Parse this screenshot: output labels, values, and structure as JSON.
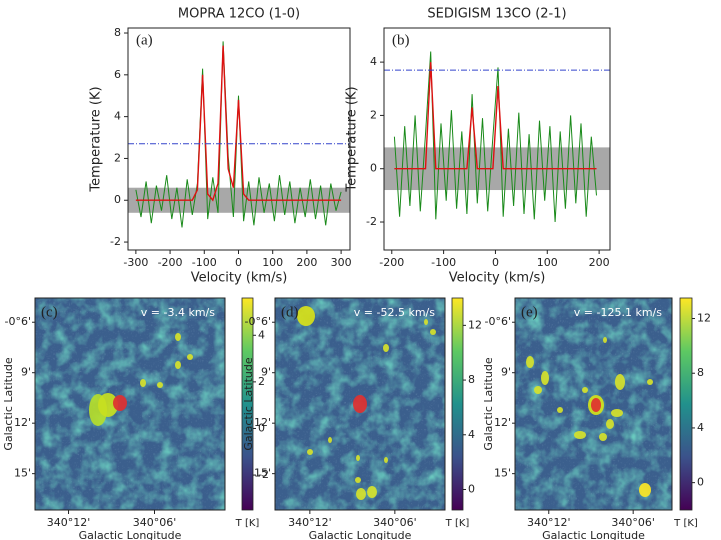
{
  "chart_data": [
    {
      "type": "line",
      "title": "MOPRA 12CO (1-0)",
      "label": "(a)",
      "xlabel": "Velocity (km/s)",
      "ylabel": "Temperature (K)",
      "xlim": [
        -323,
        326
      ],
      "xticks": [
        -300,
        -200,
        -100,
        0,
        100,
        200,
        300
      ],
      "ylim": [
        -2.38,
        8.24
      ],
      "yticks": [
        -2,
        0,
        2,
        4,
        6,
        8
      ],
      "band": [
        -0.6,
        0.6
      ],
      "band_color": "#999999",
      "threshold": 2.7,
      "threshold_color": "#3344cc",
      "x": [
        -300,
        -285,
        -270,
        -255,
        -240,
        -225,
        -210,
        -195,
        -180,
        -165,
        -150,
        -135,
        -120,
        -105,
        -90,
        -75,
        -60,
        -45,
        -30,
        -15,
        0,
        15,
        30,
        45,
        60,
        75,
        90,
        105,
        120,
        135,
        150,
        165,
        180,
        195,
        210,
        225,
        240,
        255,
        270,
        285,
        300
      ],
      "series": [
        {
          "color": "#1a8a1a",
          "values": [
            0.5,
            -0.8,
            0.9,
            -1.1,
            0.7,
            -0.5,
            1.2,
            -0.9,
            0.6,
            -1.3,
            1.0,
            -0.7,
            0.8,
            6.3,
            -0.9,
            1.1,
            -0.6,
            7.6,
            2.1,
            -0.8,
            5.0,
            -1.0,
            0.9,
            -1.2,
            1.1,
            -0.6,
            0.8,
            -1.0,
            1.2,
            -0.7,
            0.9,
            -1.1,
            0.6,
            -0.8,
            1.0,
            -0.9,
            0.7,
            -1.2,
            0.8,
            -0.5,
            0.4
          ]
        },
        {
          "color": "#dd1111",
          "values": [
            0,
            0,
            0,
            0,
            0,
            0,
            0,
            0,
            0,
            0,
            0,
            0,
            0.5,
            6.0,
            0.3,
            0,
            0.8,
            7.4,
            1.5,
            0.6,
            4.8,
            0.3,
            0,
            0,
            0,
            0,
            0,
            0,
            0,
            0,
            0,
            0,
            0,
            0,
            0,
            0,
            0,
            0,
            0,
            0,
            0
          ]
        }
      ]
    },
    {
      "type": "line",
      "title": "SEDIGISM 13CO (2-1)",
      "label": "(b)",
      "xlabel": "Velocity (km/s)",
      "ylabel": "Temperature (K)",
      "xlim": [
        -215,
        221
      ],
      "xticks": [
        -200,
        -100,
        0,
        100,
        200
      ],
      "ylim": [
        -3.05,
        5.28
      ],
      "yticks": [
        -2,
        0,
        2,
        4
      ],
      "band": [
        -0.8,
        0.8
      ],
      "band_color": "#999999",
      "threshold": 3.7,
      "threshold_color": "#3344cc",
      "x": [
        -195,
        -185,
        -175,
        -165,
        -155,
        -145,
        -135,
        -125,
        -115,
        -105,
        -95,
        -85,
        -75,
        -65,
        -55,
        -45,
        -35,
        -25,
        -15,
        -5,
        5,
        15,
        25,
        35,
        45,
        55,
        65,
        75,
        85,
        95,
        105,
        115,
        125,
        135,
        145,
        155,
        165,
        175,
        185,
        195
      ],
      "series": [
        {
          "color": "#1a8a1a",
          "values": [
            1.2,
            -1.8,
            1.6,
            -1.4,
            2.0,
            -1.6,
            1.3,
            4.4,
            -1.9,
            1.7,
            -1.2,
            2.2,
            -1.5,
            1.4,
            -1.7,
            2.8,
            -1.3,
            1.9,
            -1.6,
            1.2,
            3.8,
            -1.8,
            1.5,
            -1.4,
            2.1,
            -1.7,
            1.3,
            -1.9,
            1.8,
            -1.2,
            1.6,
            -2.0,
            1.4,
            -1.5,
            2.0,
            -1.3,
            1.7,
            -1.8,
            1.2,
            -1.0
          ]
        },
        {
          "color": "#dd1111",
          "values": [
            0,
            0,
            0,
            0,
            0,
            0,
            0,
            4.0,
            0,
            0,
            0,
            0,
            0,
            0,
            0,
            2.3,
            0,
            0,
            0,
            0,
            3.1,
            0,
            0,
            0,
            0,
            0,
            0,
            0,
            0,
            0,
            0,
            0,
            0,
            0,
            0,
            0,
            0,
            0,
            0,
            0
          ]
        }
      ]
    },
    {
      "type": "map",
      "title": "v = -3.4 km/s",
      "label": "(c)",
      "xlabel": "Galactic Longitude",
      "ylabel": "Galactic Latitude",
      "xlim": [
        340.239,
        340.018
      ],
      "xticks": [
        {
          "value": 340.2,
          "label": "340°12'"
        },
        {
          "value": 340.1,
          "label": "340°06'"
        }
      ],
      "ylim": [
        -0.286,
        -0.076
      ],
      "yticks": [
        {
          "value": -0.1,
          "label": "-0°6'"
        },
        {
          "value": -0.15,
          "label": "9'"
        },
        {
          "value": -0.2,
          "label": "12'"
        },
        {
          "value": -0.25,
          "label": "15'"
        }
      ],
      "cbar_label": "T [K]",
      "cbar_lim": [
        -3.5,
        5.6
      ],
      "cbar_ticks": [
        -2,
        0,
        2,
        4
      ]
    },
    {
      "type": "map",
      "title": "v = -52.5 km/s",
      "label": "(d)",
      "xlabel": "Galactic Longitude",
      "ylabel": "Galactic Latitude",
      "xlim": [
        340.241,
        340.041
      ],
      "xticks": [
        {
          "value": 340.2,
          "label": "340°12'"
        },
        {
          "value": 340.1,
          "label": "340°06'"
        }
      ],
      "ylim": [
        -0.286,
        -0.076
      ],
      "yticks": [
        {
          "value": -0.1,
          "label": "-0°6'"
        },
        {
          "value": -0.15,
          "label": "9'"
        },
        {
          "value": -0.2,
          "label": "12'"
        },
        {
          "value": -0.25,
          "label": "15'"
        }
      ],
      "cbar_label": "T [K]",
      "cbar_lim": [
        -1.5,
        14
      ],
      "cbar_ticks": [
        0,
        4,
        8,
        12
      ]
    },
    {
      "type": "map",
      "title": "v = -125.1 km/s",
      "label": "(e)",
      "xlabel": "Galactic Longitude",
      "ylabel": "Galactic Latitude",
      "xlim": [
        340.24,
        340.054
      ],
      "xticks": [
        {
          "value": 340.2,
          "label": "340°12'"
        },
        {
          "value": 340.1,
          "label": "340°06'"
        }
      ],
      "ylim": [
        -0.286,
        -0.076
      ],
      "yticks": [
        {
          "value": -0.1,
          "label": "-0°6'"
        },
        {
          "value": -0.15,
          "label": "9'"
        },
        {
          "value": -0.2,
          "label": "12'"
        },
        {
          "value": -0.25,
          "label": "15'"
        }
      ],
      "cbar_label": "T [K]",
      "cbar_lim": [
        -2,
        13.5
      ],
      "cbar_ticks": [
        0,
        4,
        8,
        12
      ]
    }
  ]
}
